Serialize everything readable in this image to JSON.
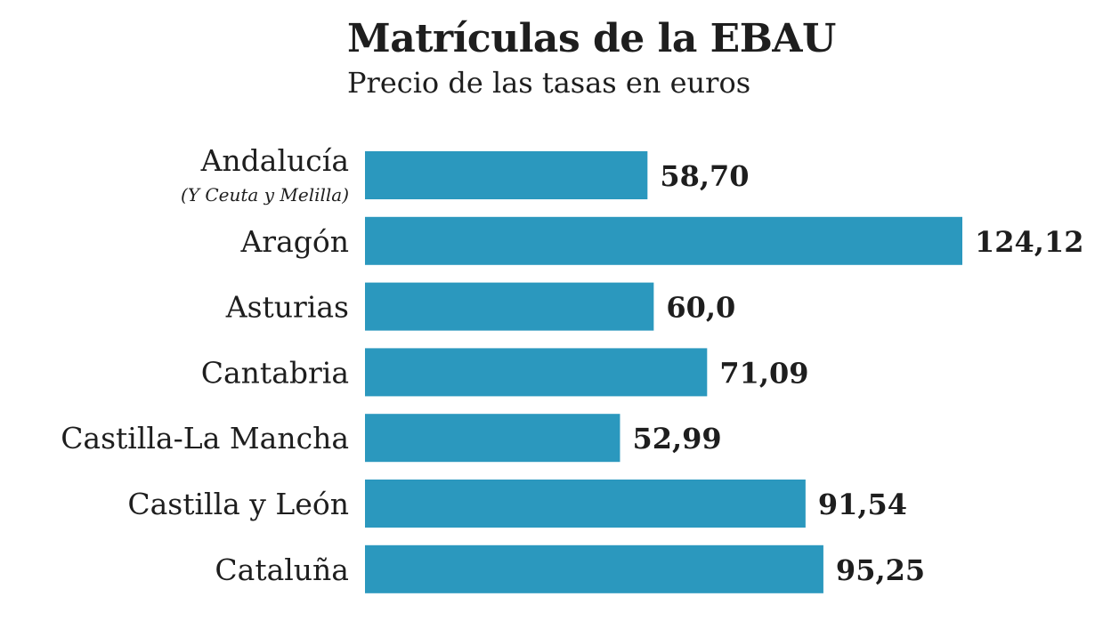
{
  "chart_data": {
    "type": "bar",
    "orientation": "horizontal",
    "title": "Matrículas de la EBAU",
    "subtitle": "Precio de las tasas en euros",
    "categories": [
      "Andalucía",
      "Aragón",
      "Asturias",
      "Cantabria",
      "Castilla-La Mancha",
      "Castilla y León",
      "Cataluña"
    ],
    "category_notes": {
      "0": "(Y Ceuta y Melilla)"
    },
    "values": [
      58.7,
      124.12,
      60.0,
      71.09,
      52.99,
      91.54,
      95.25
    ],
    "value_labels": [
      "58,70",
      "124,12",
      "60,0",
      "71,09",
      "52,99",
      "91,54",
      "95,25"
    ],
    "xlabel": "",
    "ylabel": "",
    "xlim": [
      0,
      124.12
    ],
    "grid": false,
    "bar_color": "#2b98be"
  }
}
